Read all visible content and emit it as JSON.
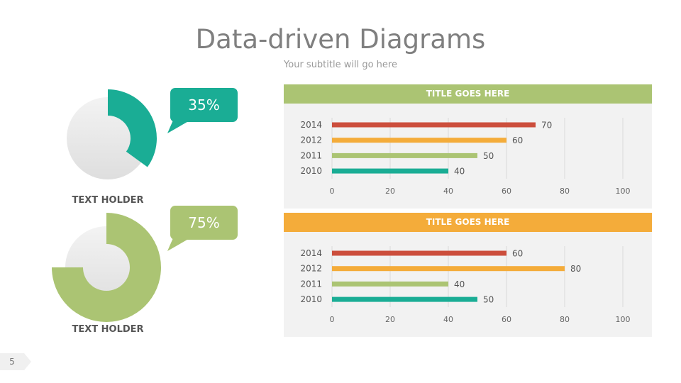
{
  "header": {
    "title": "Data-driven Diagrams",
    "subtitle": "Your subtitle will go here"
  },
  "donuts": [
    {
      "percent": 35,
      "label": "35%",
      "caption": "TEXT HOLDER",
      "color": "#1aad95"
    },
    {
      "percent": 75,
      "label": "75%",
      "caption": "TEXT HOLDER",
      "color": "#abc473"
    }
  ],
  "chart_data": [
    {
      "type": "bar",
      "orientation": "horizontal",
      "title": "TITLE GOES HERE",
      "header_color": "#abc473",
      "categories": [
        "2014",
        "2012",
        "2011",
        "2010"
      ],
      "values": [
        70,
        60,
        50,
        40
      ],
      "colors": [
        "#cc4e3c",
        "#f4ac3a",
        "#abc473",
        "#1aad95"
      ],
      "xlim": [
        0,
        100
      ],
      "xticks": [
        0,
        20,
        40,
        60,
        80,
        100
      ],
      "grid": true
    },
    {
      "type": "bar",
      "orientation": "horizontal",
      "title": "TITLE GOES HERE",
      "header_color": "#f4ac3a",
      "categories": [
        "2014",
        "2012",
        "2011",
        "2010"
      ],
      "values": [
        60,
        80,
        40,
        50
      ],
      "colors": [
        "#cc4e3c",
        "#f4ac3a",
        "#abc473",
        "#1aad95"
      ],
      "xlim": [
        0,
        100
      ],
      "xticks": [
        0,
        20,
        40,
        60,
        80,
        100
      ],
      "grid": true
    }
  ],
  "footer": {
    "page_number": "5"
  }
}
